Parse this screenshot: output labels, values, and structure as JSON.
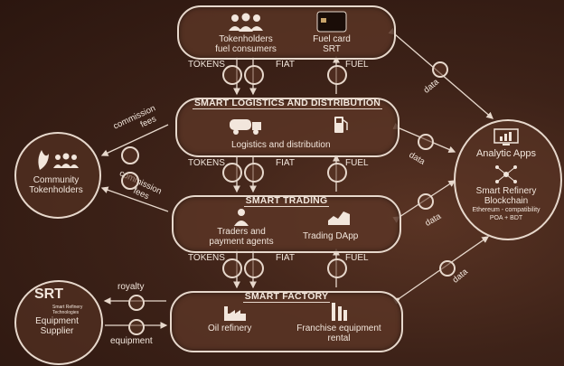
{
  "top": {
    "holders_line1": "Tokenholders",
    "holders_line2": "fuel consumers",
    "card_line1": "Fuel card",
    "card_line2": "SRT"
  },
  "flows": {
    "tokens": "TOKENS",
    "fiat": "FIAT",
    "fuel": "FUEL",
    "srt_badge": "SRT"
  },
  "logistics": {
    "title": "SMART LOGISTICS AND DISTRIBUTION",
    "label": "Logistics and distribution"
  },
  "trading": {
    "title": "SMART TRADING",
    "traders_line1": "Traders and",
    "traders_line2": "payment  agents",
    "dapp": "Trading DApp"
  },
  "factory": {
    "title": "SMART FACTORY",
    "refinery": "Oil refinery",
    "franchise_line1": "Franchise equipment",
    "franchise_line2": "rental"
  },
  "community": {
    "line1": "Community",
    "line2": "Tokenholders"
  },
  "commission": {
    "line1": "commission",
    "line2": "fees"
  },
  "supplier": {
    "logo": "SRT",
    "logo_sub1": "Smart Refinery",
    "logo_sub2": "Technologies",
    "line1": "Equipment",
    "line2": "Supplier",
    "royalty": "royalty",
    "equipment": "equipment"
  },
  "analytic": {
    "title": "Analytic Apps",
    "bc_line1": "Smart Refinery",
    "bc_line2": "Blockchain",
    "bc_line3": "Ethereum - compatibility",
    "bc_line4": "POA + BDT"
  },
  "data_label": "data",
  "colors": {
    "line": "#e7d8cc",
    "bg": "#3d2218"
  }
}
